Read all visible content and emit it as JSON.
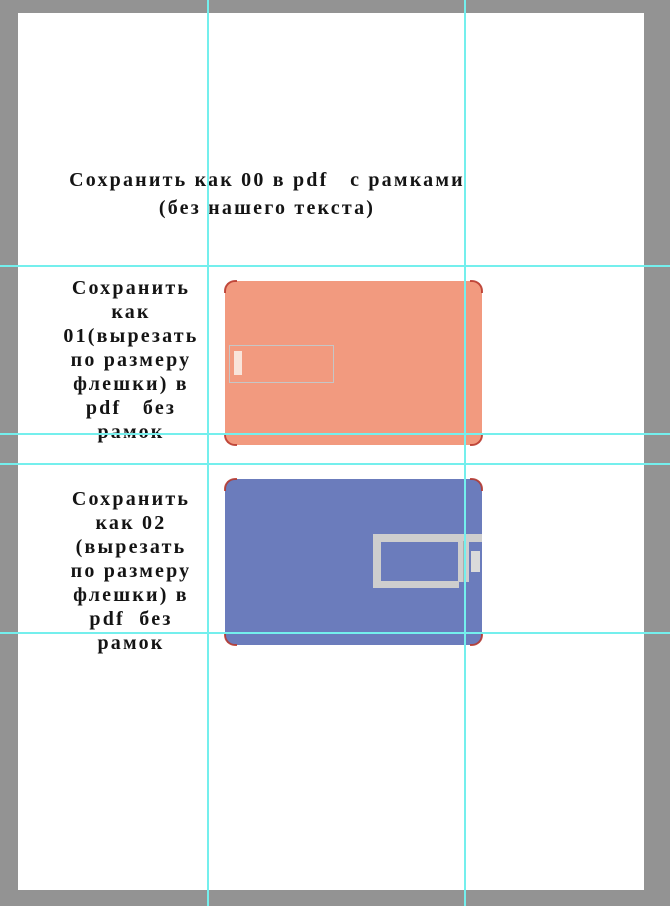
{
  "colors": {
    "workspace-bg": "#939393",
    "page-bg": "#ffffff",
    "guide": "#74efed",
    "card01": "#f29a7f",
    "card02": "#6b7cbc",
    "cutout-stroke": "#c6c6c6",
    "notch-fill": "#f9e4da",
    "drive-gray": "#cecece",
    "corner-mark": "#b8372b",
    "text": "#141414"
  },
  "notes": {
    "note00": {
      "lines": [
        "Сохранить как 00 в pdf   с рамками",
        "(без нашего текста)"
      ]
    },
    "note01": {
      "lines": [
        "Сохранить",
        "как",
        "01(вырезать",
        "по размеру",
        "флешки) в",
        "pdf   без",
        "рамок"
      ]
    },
    "note02": {
      "lines": [
        "Сохранить",
        "как 02",
        "(вырезать",
        "по размеру",
        "флешки) в",
        "pdf  без",
        "рамок"
      ]
    }
  },
  "cards": {
    "card01": {
      "name": "flash-card design 01",
      "color_hex": "#f29a7f"
    },
    "card02": {
      "name": "flash-card design 02",
      "color_hex": "#6b7cbc"
    }
  },
  "icons": {
    "cutout": "usb-cutout-outline",
    "drive": "usb-drive-outline"
  }
}
